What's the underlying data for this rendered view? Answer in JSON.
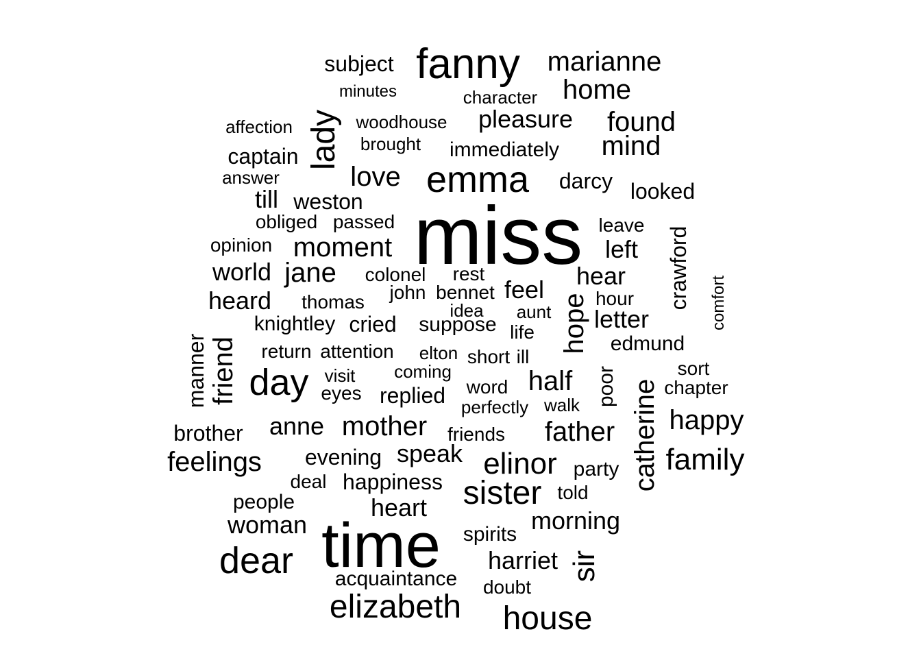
{
  "words": [
    "miss",
    "time",
    "emma",
    "fanny",
    "dear",
    "day",
    "sister",
    "elizabeth",
    "house",
    "lady",
    "sir",
    "hope",
    "friend",
    "catherine",
    "crawford",
    "manner",
    "poor",
    "comfort",
    "marianne",
    "subject",
    "home",
    "minutes",
    "character",
    "pleasure",
    "found",
    "woodhouse",
    "affection",
    "mind",
    "brought",
    "immediately",
    "captain",
    "answer",
    "love",
    "darcy",
    "looked",
    "till",
    "weston",
    "obliged",
    "passed",
    "leave",
    "opinion",
    "moment",
    "left",
    "world",
    "jane",
    "colonel",
    "rest",
    "hear",
    "heard",
    "thomas",
    "john",
    "bennet",
    "feel",
    "hour",
    "idea",
    "aunt",
    "letter",
    "knightley",
    "cried",
    "suppose",
    "life",
    "edmund",
    "return",
    "attention",
    "elton",
    "short",
    "ill",
    "visit",
    "coming",
    "half",
    "sort",
    "eyes",
    "replied",
    "word",
    "chapter",
    "perfectly",
    "walk",
    "happy",
    "brother",
    "anne",
    "mother",
    "friends",
    "father",
    "feelings",
    "evening",
    "speak",
    "elinor",
    "family",
    "deal",
    "happiness",
    "party",
    "told",
    "people",
    "heart",
    "woman",
    "morning",
    "spirits",
    "harriet",
    "acquaintance",
    "doubt"
  ]
}
